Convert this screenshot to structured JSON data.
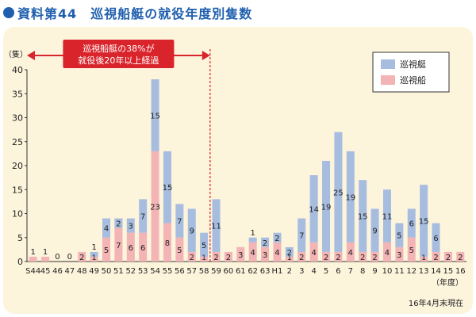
{
  "header": {
    "title": "資料第44　巡視船艇の就役年度別隻数"
  },
  "colors": {
    "boat": "#a7bde0",
    "ship": "#f3b4b6",
    "panel": "#fdf4dc",
    "accent": "#d9242c",
    "title": "#1f5fae"
  },
  "chart_data": {
    "type": "bar",
    "stacked": true,
    "title": "巡視船艇の就役年度別隻数",
    "ylabel": "（隻）",
    "xlabel": "（年度）",
    "ylim": [
      0,
      40
    ],
    "yticks": [
      0,
      5,
      10,
      15,
      20,
      25,
      30,
      35,
      40
    ],
    "categories": [
      "S44",
      "45",
      "46",
      "47",
      "48",
      "49",
      "50",
      "51",
      "52",
      "53",
      "54",
      "55",
      "56",
      "57",
      "58",
      "59",
      "60",
      "61",
      "62",
      "63",
      "H1",
      "2",
      "3",
      "4",
      "5",
      "6",
      "7",
      "8",
      "9",
      "10",
      "11",
      "12",
      "13",
      "14",
      "15",
      "16"
    ],
    "series": [
      {
        "name": "巡視船",
        "values": [
          1,
          1,
          0,
          0,
          2,
          1,
          5,
          7,
          6,
          6,
          23,
          8,
          5,
          2,
          1,
          2,
          2,
          3,
          4,
          3,
          4,
          1,
          2,
          4,
          2,
          2,
          4,
          2,
          2,
          4,
          3,
          5,
          1,
          2,
          2,
          2
        ]
      },
      {
        "name": "巡視艇",
        "values": [
          0,
          0,
          0,
          0,
          0,
          1,
          4,
          2,
          3,
          7,
          15,
          15,
          7,
          9,
          5,
          11,
          0,
          0,
          1,
          2,
          2,
          2,
          7,
          14,
          19,
          25,
          19,
          15,
          9,
          11,
          5,
          6,
          15,
          6,
          0,
          0
        ]
      }
    ],
    "annotation": {
      "text": [
        "巡視船艇の38%が",
        "就役後20年以上経過"
      ],
      "cutoff_after": "58"
    },
    "legend": [
      "巡視艇",
      "巡視船"
    ],
    "legend_position": "top-right",
    "footnote": "16年4月末現在"
  }
}
